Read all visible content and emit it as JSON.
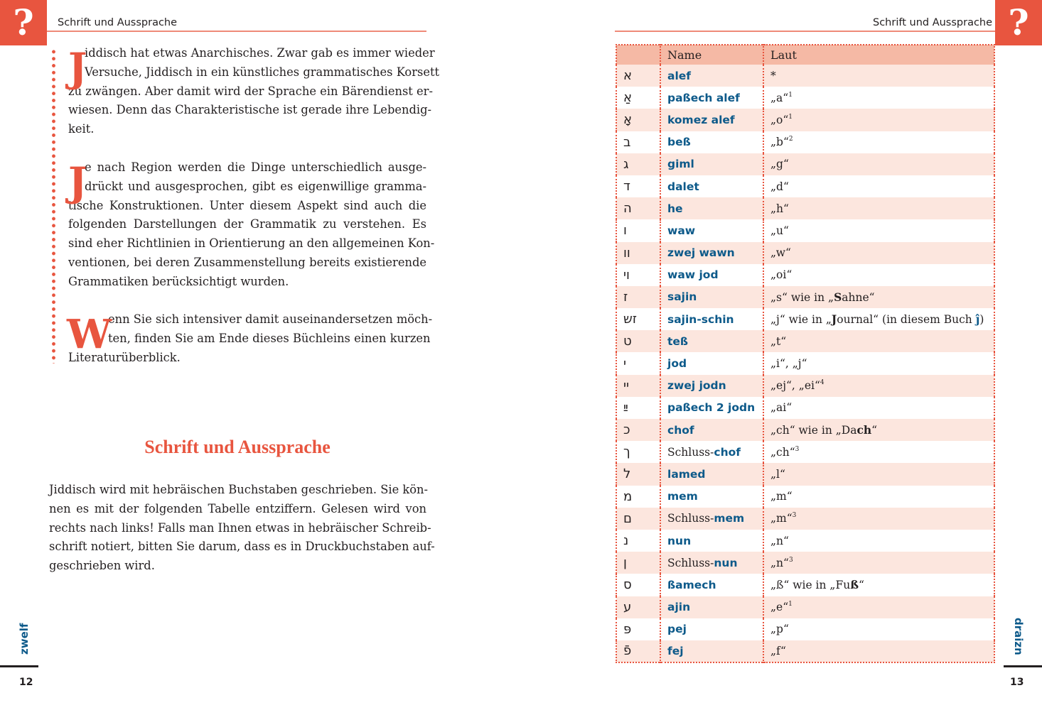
{
  "running_head": "Schrift und Aussprache",
  "question_icon": "?",
  "left": {
    "paragraphs": [
      {
        "drop": "J",
        "lines": [
          "iddisch hat etwas Anarchisches. Zwar gab es immer wieder",
          "Versuche, Jiddisch in ein künstliches grammatisches Korsett",
          "zu zwängen. Aber damit wird der Sprache ein Bärendienst er-",
          "wiesen. Denn das Charakteristische ist gerade ihre Lebendig-",
          "keit."
        ]
      },
      {
        "drop": "J",
        "lines": [
          "e nach Region werden die Dinge unterschiedlich ausge-",
          "drückt und ausgesprochen, gibt es eigenwillige gramma-",
          "tische Konstruktionen. Unter diesem Aspekt sind auch die",
          "folgenden Darstellungen der Grammatik zu verstehen. Es",
          "sind eher Richtlinien in Orientierung an den allgemeinen Kon-",
          "ventionen, bei deren Zusammenstellung bereits existierende",
          "Grammatiken berücksichtigt wurden."
        ]
      },
      {
        "drop": "W",
        "lines": [
          "enn Sie sich intensiver damit auseinandersetzen möch-",
          "ten, finden Sie am Ende dieses Büchleins einen kurzen",
          "Literaturüberblick."
        ]
      }
    ],
    "heading": "Schrift und Aussprache",
    "section_lines": [
      "Jiddisch wird mit hebräischen Buchstaben geschrieben. Sie kön-",
      "nen es mit der folgenden Tabelle entziffern. Gelesen wird von",
      "rechts nach links! Falls man Ihnen etwas in hebräischer Schreib-",
      "schrift notiert, bitten Sie darum, dass es in Druckbuchstaben auf-",
      "geschrieben wird."
    ],
    "page_word": "zwelf",
    "page_number": "12"
  },
  "right": {
    "table": {
      "headers": [
        "",
        "Name",
        "Laut"
      ],
      "rows": [
        {
          "letter": "א",
          "pre": "",
          "name": "alef",
          "laut": [
            {
              "t": "*"
            }
          ]
        },
        {
          "letter": "אַ",
          "pre": "",
          "name": "paßech alef",
          "laut": [
            {
              "t": "„a“"
            },
            {
              "t": "1",
              "s": "sup"
            }
          ]
        },
        {
          "letter": "אָ",
          "pre": "",
          "name": "komez alef",
          "laut": [
            {
              "t": "„o“"
            },
            {
              "t": "1",
              "s": "sup"
            }
          ]
        },
        {
          "letter": "ב",
          "pre": "",
          "name": "beß",
          "laut": [
            {
              "t": "„b“"
            },
            {
              "t": "2",
              "s": "sup"
            }
          ]
        },
        {
          "letter": "ג",
          "pre": "",
          "name": "giml",
          "laut": [
            {
              "t": "„g“"
            }
          ]
        },
        {
          "letter": "ד",
          "pre": "",
          "name": "dalet",
          "laut": [
            {
              "t": "„d“"
            }
          ]
        },
        {
          "letter": "ה",
          "pre": "",
          "name": "he",
          "laut": [
            {
              "t": "„h“"
            }
          ]
        },
        {
          "letter": "ו",
          "pre": "",
          "name": "waw",
          "laut": [
            {
              "t": "„u“"
            }
          ]
        },
        {
          "letter": "וו",
          "pre": "",
          "name": "zwej wawn",
          "laut": [
            {
              "t": "„w“"
            }
          ]
        },
        {
          "letter": "וי",
          "pre": "",
          "name": "waw jod",
          "laut": [
            {
              "t": "„oi“"
            }
          ]
        },
        {
          "letter": "ז",
          "pre": "",
          "name": "sajin",
          "laut": [
            {
              "t": "„s“ wie in „"
            },
            {
              "t": "S",
              "s": "b"
            },
            {
              "t": "ahne“"
            }
          ]
        },
        {
          "letter": "זש",
          "pre": "",
          "name": "sajin-schin",
          "laut": [
            {
              "t": "„j“ wie in „"
            },
            {
              "t": "J",
              "s": "b"
            },
            {
              "t": "ournal“ (in diesem Buch "
            },
            {
              "t": "ĵ",
              "s": "blue"
            },
            {
              "t": ")"
            }
          ]
        },
        {
          "letter": "ט",
          "pre": "",
          "name": "teß",
          "laut": [
            {
              "t": "„t“"
            }
          ]
        },
        {
          "letter": "י",
          "pre": "",
          "name": "jod",
          "laut": [
            {
              "t": "„i“, „j“"
            }
          ]
        },
        {
          "letter": "יי",
          "pre": "",
          "name": "zwej jodn",
          "laut": [
            {
              "t": "„ej“, „ei“"
            },
            {
              "t": "4",
              "s": "sup"
            }
          ]
        },
        {
          "letter": "ײַ",
          "pre": "",
          "name": "paßech 2 jodn",
          "laut": [
            {
              "t": "„ai“"
            }
          ]
        },
        {
          "letter": "כ",
          "pre": "",
          "name": "chof",
          "laut": [
            {
              "t": "„ch“ wie in „Da"
            },
            {
              "t": "ch",
              "s": "b"
            },
            {
              "t": "“"
            }
          ]
        },
        {
          "letter": "ך",
          "pre": "Schluss-",
          "name": "chof",
          "laut": [
            {
              "t": "„ch“"
            },
            {
              "t": "3",
              "s": "sup"
            }
          ]
        },
        {
          "letter": "ל",
          "pre": "",
          "name": "lamed",
          "laut": [
            {
              "t": "„l“"
            }
          ]
        },
        {
          "letter": "מ",
          "pre": "",
          "name": "mem",
          "laut": [
            {
              "t": "„m“"
            }
          ]
        },
        {
          "letter": "ם",
          "pre": "Schluss-",
          "name": "mem",
          "laut": [
            {
              "t": "„m“"
            },
            {
              "t": "3",
              "s": "sup"
            }
          ]
        },
        {
          "letter": "נ",
          "pre": "",
          "name": "nun",
          "laut": [
            {
              "t": "„n“"
            }
          ]
        },
        {
          "letter": "ן",
          "pre": "Schluss-",
          "name": "nun",
          "laut": [
            {
              "t": "„n“"
            },
            {
              "t": "3",
              "s": "sup"
            }
          ]
        },
        {
          "letter": "ס",
          "pre": "",
          "name": "ßamech",
          "laut": [
            {
              "t": "„ß“ wie in „Fu"
            },
            {
              "t": "ß",
              "s": "b"
            },
            {
              "t": "“"
            }
          ]
        },
        {
          "letter": "ע",
          "pre": "",
          "name": "ajin",
          "laut": [
            {
              "t": "„e“"
            },
            {
              "t": "1",
              "s": "sup"
            }
          ]
        },
        {
          "letter": "פּ",
          "pre": "",
          "name": "pej",
          "laut": [
            {
              "t": "„p“"
            }
          ]
        },
        {
          "letter": "פֿ",
          "pre": "",
          "name": "fej",
          "laut": [
            {
              "t": "„f“"
            }
          ]
        }
      ]
    },
    "page_word": "draizn",
    "page_number": "13"
  },
  "colors": {
    "accent": "#e8553f",
    "header_row": "#f5b9a5",
    "stripe": "#fce6de",
    "name_blue": "#0d5a8a"
  }
}
